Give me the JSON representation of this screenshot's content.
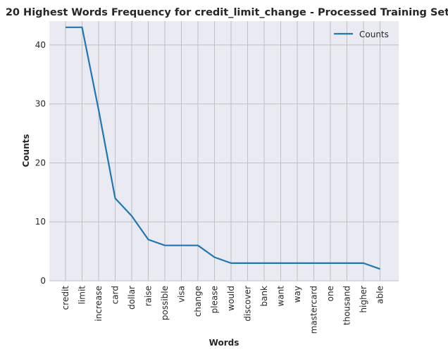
{
  "chart_data": {
    "type": "line",
    "title": "20 Highest Words Frequency for credit_limit_change - Processed Training Set",
    "xlabel": "Words",
    "ylabel": "Counts",
    "categories": [
      "credit",
      "limit",
      "increase",
      "card",
      "dollar",
      "raise",
      "possible",
      "visa",
      "change",
      "please",
      "would",
      "discover",
      "bank",
      "want",
      "way",
      "mastercard",
      "one",
      "thousand",
      "higher",
      "able"
    ],
    "series": [
      {
        "name": "Counts",
        "color": "#1f77b4",
        "values": [
          43,
          43,
          29,
          14,
          11,
          7,
          6,
          6,
          6,
          4,
          3,
          3,
          3,
          3,
          3,
          3,
          3,
          3,
          3,
          2
        ]
      }
    ],
    "ylim": [
      0,
      44.05
    ],
    "yticks": [
      0,
      10,
      20,
      30,
      40
    ],
    "grid": true,
    "legend_position": "top-right",
    "background_color": "#eaeaf2",
    "grid_color": "#c0c0c0"
  }
}
